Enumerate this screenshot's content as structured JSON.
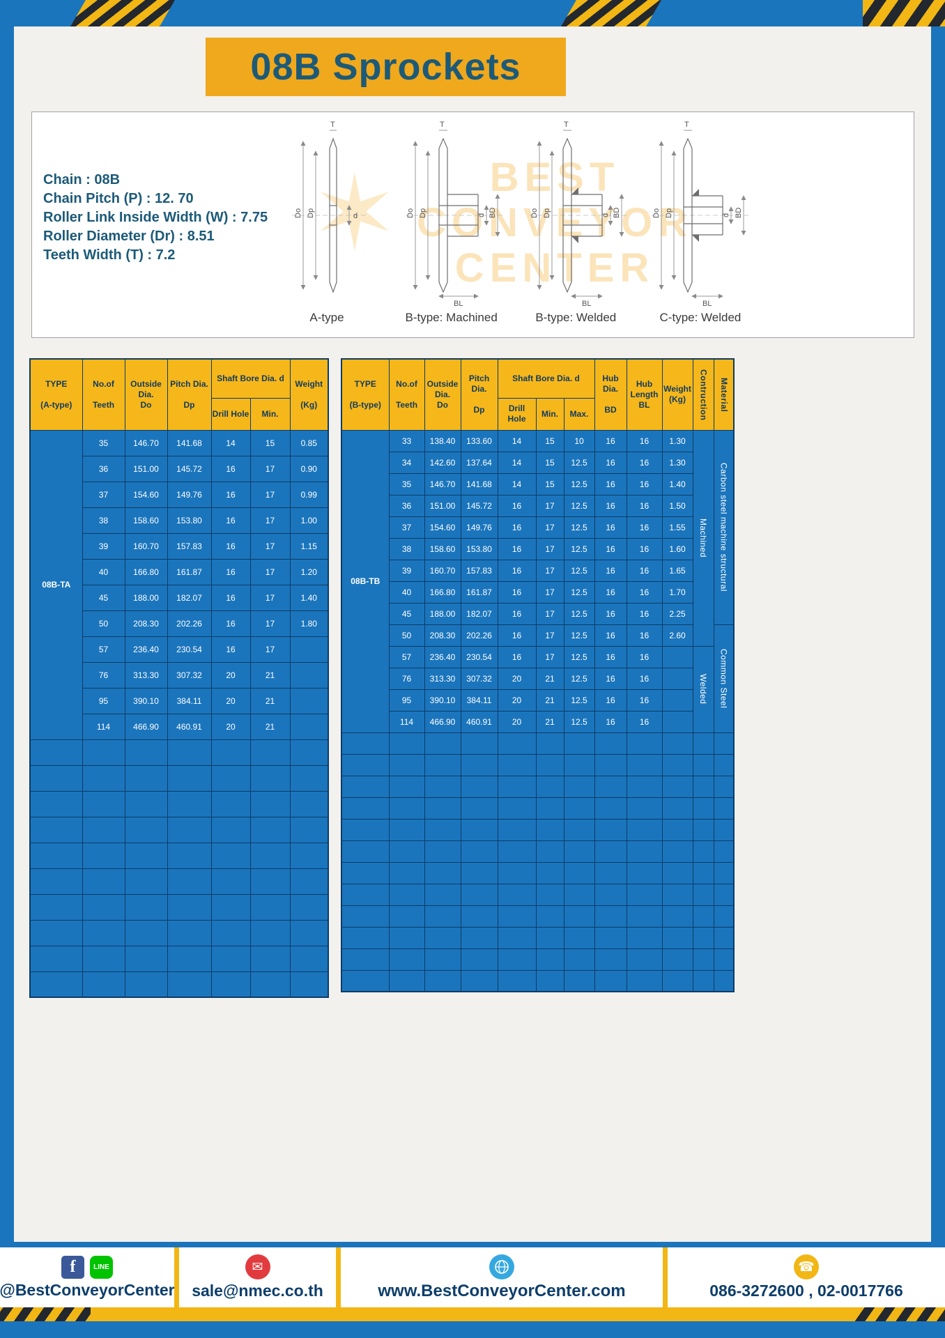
{
  "title": "08B Sprockets",
  "specs": {
    "lines": [
      "Chain : 08B",
      "Chain Pitch (P) : 12. 70",
      "Roller Link Inside Width (W) : 7.75",
      "Roller Diameter (Dr) : 8.51",
      "Teeth Width (T) : 7.2"
    ]
  },
  "drawings": {
    "captions": [
      "A-type",
      "B-type: Machined",
      "B-type: Welded",
      "C-type: Welded"
    ],
    "labels": {
      "t": "T",
      "do": "Do",
      "dp": "Dp",
      "d": "d",
      "bd": "BD",
      "bl": "BL"
    },
    "watermark": {
      "line1": "BEST",
      "line2": "CONVEYOR",
      "line3": "CENTER",
      "star": "✶"
    }
  },
  "table_a": {
    "type_value": "08B-TA",
    "headers": {
      "type": "TYPE\n\n(A-type)",
      "teeth": "No.of\n\nTeeth",
      "outside": "Outside\nDia.\nDo",
      "pitch": "Pitch Dia.\n\nDp",
      "shaft": "Shaft Bore Dia. d",
      "drill": "Drill Hole",
      "min": "Min.",
      "weight": "Weight\n\n(Kg)"
    },
    "rows": [
      [
        "35",
        "146.70",
        "141.68",
        "14",
        "15",
        "0.85"
      ],
      [
        "36",
        "151.00",
        "145.72",
        "16",
        "17",
        "0.90"
      ],
      [
        "37",
        "154.60",
        "149.76",
        "16",
        "17",
        "0.99"
      ],
      [
        "38",
        "158.60",
        "153.80",
        "16",
        "17",
        "1.00"
      ],
      [
        "39",
        "160.70",
        "157.83",
        "16",
        "17",
        "1.15"
      ],
      [
        "40",
        "166.80",
        "161.87",
        "16",
        "17",
        "1.20"
      ],
      [
        "45",
        "188.00",
        "182.07",
        "16",
        "17",
        "1.40"
      ],
      [
        "50",
        "208.30",
        "202.26",
        "16",
        "17",
        "1.80"
      ],
      [
        "57",
        "236.40",
        "230.54",
        "16",
        "17",
        ""
      ],
      [
        "76",
        "313.30",
        "307.32",
        "20",
        "21",
        ""
      ],
      [
        "95",
        "390.10",
        "384.11",
        "20",
        "21",
        ""
      ],
      [
        "114",
        "466.90",
        "460.91",
        "20",
        "21",
        ""
      ]
    ],
    "empty_rows": 10
  },
  "table_b": {
    "type_value": "08B-TB",
    "headers": {
      "type": "TYPE\n\n(B-type)",
      "teeth": "No.of\n\nTeeth",
      "outside": "Outside\nDia.\nDo",
      "pitch": "Pitch Dia.\n\nDp",
      "shaft": "Shaft Bore Dia. d",
      "drill": "Drill Hole",
      "min": "Min.",
      "max": "Max.",
      "hub_dia": "Hub Dia.\n\nBD",
      "hub_len": "Hub\nLength\nBL",
      "weight": "Weight\n(Kg)",
      "construction": "Contruction",
      "material": "Material"
    },
    "rows": [
      [
        "33",
        "138.40",
        "133.60",
        "14",
        "15",
        "10",
        "16",
        "16",
        "1.30"
      ],
      [
        "34",
        "142.60",
        "137.64",
        "14",
        "15",
        "12.5",
        "16",
        "16",
        "1.30"
      ],
      [
        "35",
        "146.70",
        "141.68",
        "14",
        "15",
        "12.5",
        "16",
        "16",
        "1.40"
      ],
      [
        "36",
        "151.00",
        "145.72",
        "16",
        "17",
        "12.5",
        "16",
        "16",
        "1.50"
      ],
      [
        "37",
        "154.60",
        "149.76",
        "16",
        "17",
        "12.5",
        "16",
        "16",
        "1.55"
      ],
      [
        "38",
        "158.60",
        "153.80",
        "16",
        "17",
        "12.5",
        "16",
        "16",
        "1.60"
      ],
      [
        "39",
        "160.70",
        "157.83",
        "16",
        "17",
        "12.5",
        "16",
        "16",
        "1.65"
      ],
      [
        "40",
        "166.80",
        "161.87",
        "16",
        "17",
        "12.5",
        "16",
        "16",
        "1.70"
      ],
      [
        "45",
        "188.00",
        "182.07",
        "16",
        "17",
        "12.5",
        "16",
        "16",
        "2.25"
      ],
      [
        "50",
        "208.30",
        "202.26",
        "16",
        "17",
        "12.5",
        "16",
        "16",
        "2.60"
      ],
      [
        "57",
        "236.40",
        "230.54",
        "16",
        "17",
        "12.5",
        "16",
        "16",
        ""
      ],
      [
        "76",
        "313.30",
        "307.32",
        "20",
        "21",
        "12.5",
        "16",
        "16",
        ""
      ],
      [
        "95",
        "390.10",
        "384.11",
        "20",
        "21",
        "12.5",
        "16",
        "16",
        ""
      ],
      [
        "114",
        "466.90",
        "460.91",
        "20",
        "21",
        "12.5",
        "16",
        "16",
        ""
      ]
    ],
    "construction_spans": [
      {
        "text": "Machined",
        "from": 0,
        "count": 10
      },
      {
        "text": "Welded",
        "from": 10,
        "count": 4
      }
    ],
    "material_spans": [
      {
        "text": "Carbon steel  machine  structural",
        "from": 0,
        "count": 9
      },
      {
        "text": "Common  Steel",
        "from": 9,
        "count": 5
      }
    ],
    "empty_rows": 12
  },
  "footer": {
    "social_label": "@BestConveyorCenter",
    "email": "sale@nmec.co.th",
    "website": "www.BestConveyorCenter.com",
    "phones": "086-3272600 , 02-0017766",
    "icons": {
      "facebook": "f",
      "line": "LINE",
      "mail": "✉",
      "phone": "☎"
    }
  },
  "colors": {
    "frame_blue": "#1B75BC",
    "gold": "#F2B615",
    "banner_gold": "#F0A81C",
    "header_yellow": "#F6B71A",
    "table_blue": "#1B75BC",
    "border_navy": "#0B3C68",
    "title_teal": "#1C5A78",
    "footer_navy": "#0D3E6B"
  }
}
